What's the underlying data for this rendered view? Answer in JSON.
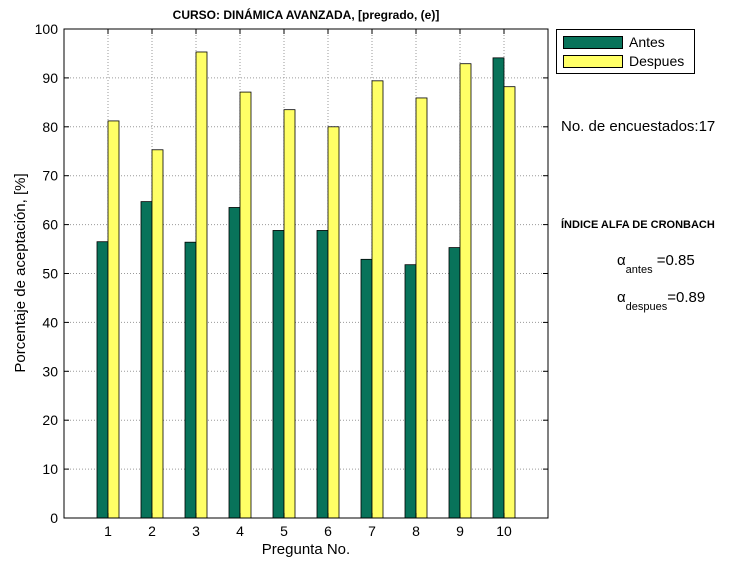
{
  "colors": {
    "antes": "#08735a",
    "despues": "#ffff66",
    "grid": "#9a9a9a"
  },
  "chart_data": {
    "type": "bar",
    "title": "CURSO: DINÁMICA AVANZADA, [pregrado, (e)]",
    "xlabel": "Pregunta No.",
    "ylabel": "Porcentaje de aceptación, [%]",
    "ylim": [
      0,
      100
    ],
    "yticks": [
      "0",
      "10",
      "20",
      "30",
      "40",
      "50",
      "60",
      "70",
      "80",
      "90",
      "100"
    ],
    "categories": [
      "1",
      "2",
      "3",
      "4",
      "5",
      "6",
      "7",
      "8",
      "9",
      "10"
    ],
    "grid": true,
    "legend_position": "outside-top-right",
    "series": [
      {
        "name": "Antes",
        "values": [
          56.5,
          64.7,
          56.4,
          63.5,
          58.8,
          58.8,
          52.9,
          51.8,
          55.3,
          94.1
        ]
      },
      {
        "name": "Despues",
        "values": [
          81.2,
          75.3,
          95.3,
          87.1,
          83.5,
          80.0,
          89.4,
          85.9,
          92.9,
          88.2
        ]
      }
    ]
  },
  "annotations": {
    "respondents": "No. de encuestados:17",
    "cronbach_title": "ÍNDICE ALFA DE CRONBACH",
    "alpha_symbol": "α",
    "alpha_antes_sub": "antes",
    "alpha_antes_value": "=0.85",
    "alpha_despues_sub": "despues",
    "alpha_despues_value": "=0.89"
  }
}
